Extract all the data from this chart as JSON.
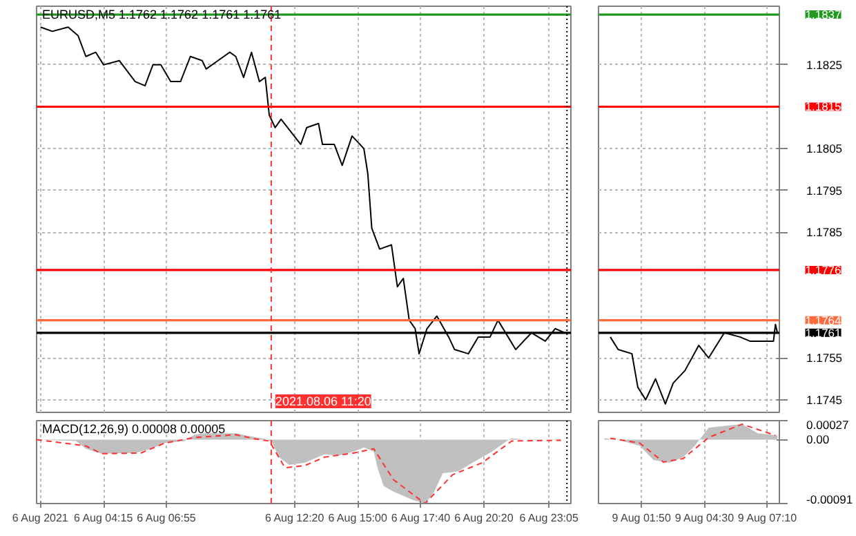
{
  "chart_data": [
    {
      "type": "line",
      "title": "EURUSD,M5 1.1762 1.1762 1.1761 1.1761",
      "xlim": [
        "2021-08-06T01:25",
        "2021-08-07T00:00"
      ],
      "ylim": [
        1.1742,
        1.1839
      ],
      "yticks": [
        1.1745,
        1.1755,
        1.1785,
        1.1795,
        1.1805,
        1.1825
      ],
      "xticks": [
        "2021-08-06T01:35",
        "2021-08-06T04:15",
        "2021-08-06T06:55",
        "2021-08-06T12:20",
        "2021-08-06T15:00",
        "2021-08-06T17:40",
        "2021-08-06T20:20",
        "2021-08-06T23:05"
      ],
      "tick_labels": false,
      "grid": true,
      "series": [
        {
          "color": "#000000",
          "x": [
            "2021-08-06T01:35",
            "2021-08-06T02:05",
            "2021-08-06T02:45",
            "2021-08-06T03:10",
            "2021-08-06T03:30",
            "2021-08-06T03:55",
            "2021-08-06T04:15",
            "2021-08-06T04:55",
            "2021-08-06T05:35",
            "2021-08-06T06:00",
            "2021-08-06T06:20",
            "2021-08-06T06:40",
            "2021-08-06T07:05",
            "2021-08-06T07:30",
            "2021-08-06T07:55",
            "2021-08-06T08:25",
            "2021-08-06T08:35",
            "2021-08-06T09:05",
            "2021-08-06T09:35",
            "2021-08-06T09:50",
            "2021-08-06T10:10",
            "2021-08-06T10:30",
            "2021-08-06T10:50",
            "2021-08-06T11:05",
            "2021-08-06T11:15",
            "2021-08-06T11:30",
            "2021-08-06T11:45",
            "2021-08-06T12:35",
            "2021-08-06T12:50",
            "2021-08-06T13:20",
            "2021-08-06T13:30",
            "2021-08-06T14:00",
            "2021-08-06T14:20",
            "2021-08-06T14:45",
            "2021-08-06T15:15",
            "2021-08-06T15:25",
            "2021-08-06T15:35",
            "2021-08-06T15:55",
            "2021-08-06T16:25",
            "2021-08-06T16:40",
            "2021-08-06T16:55",
            "2021-08-06T17:10",
            "2021-08-06T17:25",
            "2021-08-06T17:35",
            "2021-08-06T17:55",
            "2021-08-06T18:20",
            "2021-08-06T18:50",
            "2021-08-06T19:05",
            "2021-08-06T19:40",
            "2021-08-06T20:05",
            "2021-08-06T20:35",
            "2021-08-06T20:55",
            "2021-08-06T21:40",
            "2021-08-06T22:20",
            "2021-08-06T22:55",
            "2021-08-06T23:20",
            "2021-08-06T23:45"
          ],
          "values": [
            1.1834,
            1.1833,
            1.1834,
            1.1832,
            1.1827,
            1.1828,
            1.1825,
            1.1826,
            1.1821,
            1.182,
            1.1825,
            1.1825,
            1.1821,
            1.1821,
            1.1827,
            1.1826,
            1.1824,
            1.1826,
            1.1828,
            1.1827,
            1.1822,
            1.1828,
            1.1821,
            1.1822,
            1.1813,
            1.181,
            1.1812,
            1.1806,
            1.181,
            1.1811,
            1.1806,
            1.1806,
            1.1801,
            1.1808,
            1.1805,
            1.1799,
            1.1786,
            1.1781,
            1.1782,
            1.1772,
            1.1774,
            1.1764,
            1.1762,
            1.1756,
            1.1762,
            1.1765,
            1.176,
            1.1757,
            1.1756,
            1.176,
            1.176,
            1.1764,
            1.1757,
            1.1761,
            1.1759,
            1.1762,
            1.1761
          ]
        }
      ],
      "ref_lines": [
        {
          "axis": "y",
          "value": 1.1837,
          "label": null,
          "color": "#1f9a1f",
          "line_style": "solid"
        },
        {
          "axis": "y",
          "value": 1.1815,
          "label": null,
          "color": "#ff0000",
          "line_style": "solid"
        },
        {
          "axis": "y",
          "value": 1.1776,
          "label": null,
          "color": "#ff0000",
          "line_style": "solid"
        },
        {
          "axis": "y",
          "value": 1.1764,
          "label": null,
          "color": "#ff6a3d",
          "line_style": "solid"
        },
        {
          "axis": "y",
          "value": 1.1761,
          "label": null,
          "color": "#000000",
          "line_style": "solid"
        },
        {
          "axis": "x",
          "value": "2021-08-06T11:20",
          "label": "2021.08.06 11:20",
          "color": "#ff3030",
          "line_style": "dashed"
        },
        {
          "axis": "x",
          "value": "2021-08-06T23:50",
          "label": null,
          "color": "#000000",
          "line_style": "dotted"
        }
      ]
    },
    {
      "type": "line",
      "xlim": [
        "2021-08-09T00:00",
        "2021-08-09T07:40"
      ],
      "ylim": [
        1.1742,
        1.1839
      ],
      "yticks": [
        1.1745,
        1.1755,
        1.1785,
        1.1795,
        1.1805,
        1.1825
      ],
      "xticks": [
        "2021-08-09T01:50",
        "2021-08-09T04:30",
        "2021-08-09T07:10"
      ],
      "tick_labels": "y",
      "grid": true,
      "series": [
        {
          "color": "#000000",
          "x": [
            "2021-08-09T00:30",
            "2021-08-09T00:50",
            "2021-08-09T01:25",
            "2021-08-09T01:40",
            "2021-08-09T02:00",
            "2021-08-09T02:25",
            "2021-08-09T02:50",
            "2021-08-09T03:10",
            "2021-08-09T03:40",
            "2021-08-09T04:15",
            "2021-08-09T04:40",
            "2021-08-09T05:20",
            "2021-08-09T06:00",
            "2021-08-09T06:25",
            "2021-08-09T07:25",
            "2021-08-09T07:30",
            "2021-08-09T07:35"
          ],
          "values": [
            1.176,
            1.1757,
            1.1756,
            1.1748,
            1.1745,
            1.175,
            1.1744,
            1.1749,
            1.1752,
            1.1758,
            1.1755,
            1.1761,
            1.176,
            1.1759,
            1.1759,
            1.1763,
            1.1761
          ]
        }
      ],
      "ref_lines": [
        {
          "axis": "y",
          "value": 1.1837,
          "label": "1.1837",
          "color": "#1f9a1f",
          "line_style": "solid"
        },
        {
          "axis": "y",
          "value": 1.1815,
          "label": "1.1815",
          "color": "#ff0000",
          "line_style": "solid"
        },
        {
          "axis": "y",
          "value": 1.1776,
          "label": "1.1776",
          "color": "#ff0000",
          "line_style": "solid"
        },
        {
          "axis": "y",
          "value": 1.1764,
          "label": "1.1764",
          "color": "#ff6a3d",
          "line_style": "solid"
        },
        {
          "axis": "y",
          "value": 1.1761,
          "label": "1.1761",
          "color": "#000000",
          "line_style": "solid"
        }
      ]
    },
    {
      "type": "area",
      "title": "MACD(12,26,9) 0.00008 0.00005",
      "xlim": [
        "2021-08-06T01:25",
        "2021-08-07T00:00"
      ],
      "ylim": [
        -0.00091,
        0.00027
      ],
      "yticks": [
        -0.00091,
        0,
        0.00027
      ],
      "xticks": [
        {
          "value": "2021-08-06T01:35",
          "label": "6 Aug 2021"
        },
        {
          "value": "2021-08-06T04:15",
          "label": "6 Aug 04:15"
        },
        {
          "value": "2021-08-06T06:55",
          "label": "6 Aug 06:55"
        },
        {
          "value": "2021-08-06T12:20",
          "label": "6 Aug 12:20"
        },
        {
          "value": "2021-08-06T15:00",
          "label": "6 Aug 15:00"
        },
        {
          "value": "2021-08-06T17:40",
          "label": "6 Aug 17:40"
        },
        {
          "value": "2021-08-06T20:20",
          "label": "6 Aug 20:20"
        },
        {
          "value": "2021-08-06T23:05",
          "label": "6 Aug 23:05"
        }
      ],
      "tick_labels": "x",
      "grid": "x",
      "series": [
        {
          "type": "area",
          "color": "#c0c0c0",
          "x": [
            "2021-08-06T01:25",
            "2021-08-06T03:05",
            "2021-08-06T03:30",
            "2021-08-06T04:10",
            "2021-08-06T05:35",
            "2021-08-06T06:15",
            "2021-08-06T06:50",
            "2021-08-06T07:40",
            "2021-08-06T08:05",
            "2021-08-06T08:30",
            "2021-08-06T09:50",
            "2021-08-06T10:15",
            "2021-08-06T11:05",
            "2021-08-06T11:20",
            "2021-08-06T11:40",
            "2021-08-06T12:05",
            "2021-08-06T12:45",
            "2021-08-06T13:35",
            "2021-08-06T14:10",
            "2021-08-06T14:50",
            "2021-08-06T15:15",
            "2021-08-06T15:40",
            "2021-08-06T15:50",
            "2021-08-06T16:05",
            "2021-08-06T16:30",
            "2021-08-06T17:20",
            "2021-08-06T17:50",
            "2021-08-06T18:10",
            "2021-08-06T18:35",
            "2021-08-06T19:15",
            "2021-08-06T19:50",
            "2021-08-06T20:40",
            "2021-08-06T21:20",
            "2021-08-06T21:30",
            "2021-08-06T22:20",
            "2021-08-06T23:35"
          ],
          "values": [
            0,
            -2e-05,
            -0.00013,
            -0.0002,
            -0.00019,
            -0.00013,
            -5e-05,
            -2e-05,
            7e-05,
            9e-05,
            9e-05,
            6e-05,
            1e-05,
            -2e-05,
            -0.00025,
            -0.00036,
            -0.00033,
            -0.00021,
            -0.00023,
            -0.00017,
            -0.00011,
            -0.00017,
            -0.00041,
            -0.00066,
            -0.00074,
            -0.00086,
            -0.00091,
            -0.00078,
            -0.00048,
            -0.00045,
            -0.00033,
            -0.00017,
            -1e-05,
            2e-05,
            -1e-05,
            1e-05
          ]
        },
        {
          "type": "line",
          "color": "#ff3030",
          "line_style": "dashed",
          "x": [
            "2021-08-06T01:25",
            "2021-08-06T03:30",
            "2021-08-06T04:10",
            "2021-08-06T05:50",
            "2021-08-06T06:50",
            "2021-08-06T08:05",
            "2021-08-06T09:50",
            "2021-08-06T10:40",
            "2021-08-06T11:15",
            "2021-08-06T11:55",
            "2021-08-06T12:45",
            "2021-08-06T13:35",
            "2021-08-06T14:50",
            "2021-08-06T15:40",
            "2021-08-06T16:30",
            "2021-08-06T17:50",
            "2021-08-06T19:00",
            "2021-08-06T20:15",
            "2021-08-06T21:30",
            "2021-08-06T23:35"
          ],
          "values": [
            0,
            -9e-05,
            -0.0002,
            -0.00019,
            -5e-05,
            3e-05,
            7e-05,
            1e-05,
            -2e-05,
            -0.0004,
            -0.00037,
            -0.00025,
            -0.00019,
            -0.00013,
            -0.00057,
            -0.00091,
            -0.0005,
            -0.00033,
            -2e-05,
            -1e-05
          ]
        }
      ],
      "ref_lines": [
        {
          "axis": "x",
          "value": "2021-08-06T11:20",
          "label": null,
          "color": "#ff3030",
          "line_style": "dashed"
        },
        {
          "axis": "x",
          "value": "2021-08-06T23:50",
          "label": null,
          "color": "#000000",
          "line_style": "dotted"
        }
      ]
    },
    {
      "type": "area",
      "xlim": [
        "2021-08-09T00:00",
        "2021-08-09T07:40"
      ],
      "ylim": [
        -0.00091,
        0.00027
      ],
      "yticks": [
        {
          "value": -0.00091,
          "label": "-0.00091"
        },
        {
          "value": 0,
          "label": "0.00"
        },
        {
          "value": 0.00027,
          "label": "0.00027"
        }
      ],
      "xticks": [
        {
          "value": "2021-08-09T01:50",
          "label": "9 Aug 01:50"
        },
        {
          "value": "2021-08-09T04:30",
          "label": "9 Aug 04:30"
        },
        {
          "value": "2021-08-09T07:10",
          "label": "9 Aug 07:10"
        }
      ],
      "grid": "x",
      "series": [
        {
          "type": "area",
          "color": "#c0c0c0",
          "x": [
            "2021-08-09T00:15",
            "2021-08-09T00:55",
            "2021-08-09T01:45",
            "2021-08-09T02:20",
            "2021-08-09T03:00",
            "2021-08-09T03:35",
            "2021-08-09T04:05",
            "2021-08-09T04:40",
            "2021-08-09T05:30",
            "2021-08-09T06:05",
            "2021-08-09T06:45",
            "2021-08-09T07:35"
          ],
          "values": [
            2e-05,
            -1e-05,
            -9e-05,
            -0.00029,
            -0.00033,
            -0.00025,
            -9e-05,
            0.00017,
            0.0002,
            0.00022,
            9e-05,
            6e-05
          ]
        },
        {
          "type": "line",
          "color": "#ff3030",
          "line_style": "dashed",
          "x": [
            "2021-08-09T00:30",
            "2021-08-09T01:45",
            "2021-08-09T02:45",
            "2021-08-09T03:35",
            "2021-08-09T04:40",
            "2021-08-09T06:05",
            "2021-08-09T07:30"
          ],
          "values": [
            2e-05,
            -5e-05,
            -0.00032,
            -0.00027,
            3e-05,
            0.00022,
            6e-05
          ]
        }
      ]
    }
  ]
}
